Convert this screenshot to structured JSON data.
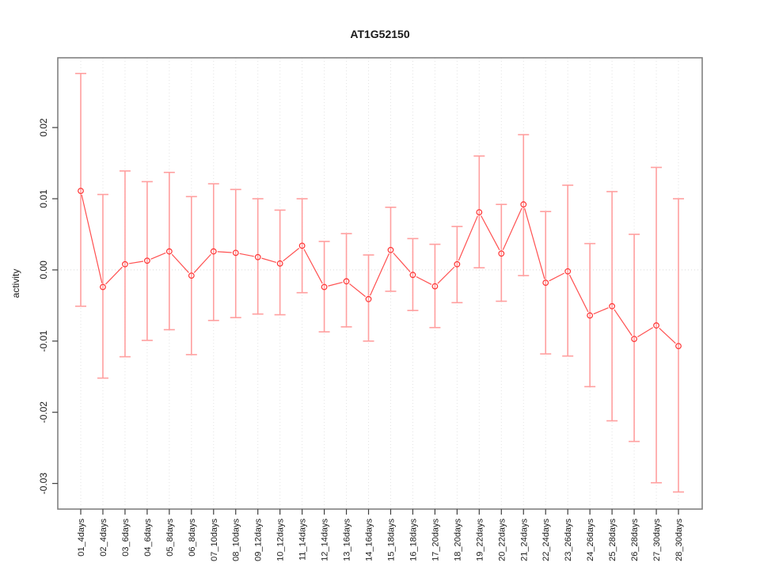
{
  "figure": {
    "title": "AT1G52150"
  },
  "chart_data": {
    "type": "line",
    "title": "AT1G52150",
    "xlabel": "",
    "ylabel": "activity",
    "legend": "none",
    "grid": "dotted vertical gridline at every category; dotted horizontal line at y=0",
    "marker": "open-circle",
    "categories": [
      "01_4days",
      "02_4days",
      "03_6days",
      "04_6days",
      "05_8days",
      "06_8days",
      "07_10days",
      "08_10days",
      "09_12days",
      "10_12days",
      "11_14days",
      "12_14days",
      "13_16days",
      "14_16days",
      "15_18days",
      "16_18days",
      "17_20days",
      "18_20days",
      "19_22days",
      "20_22days",
      "21_24days",
      "22_24days",
      "23_26days",
      "24_26days",
      "25_28days",
      "26_28days",
      "27_30days",
      "28_30days"
    ],
    "series": [
      {
        "name": "activity",
        "values": [
          0.0111,
          -0.0024,
          0.0008,
          0.0013,
          0.0026,
          -0.0008,
          0.0026,
          0.0024,
          0.0018,
          0.0009,
          0.0034,
          -0.0024,
          -0.0016,
          -0.0041,
          0.0028,
          -0.0007,
          -0.0023,
          0.0008,
          0.0081,
          0.0023,
          0.0092,
          -0.0018,
          -0.0002,
          -0.0064,
          -0.0051,
          -0.0097,
          -0.0078,
          -0.0107
        ],
        "error_high": [
          0.0276,
          0.0106,
          0.0139,
          0.0124,
          0.0137,
          0.0103,
          0.0121,
          0.0113,
          0.01,
          0.0084,
          0.01,
          0.004,
          0.0051,
          0.0021,
          0.0088,
          0.0044,
          0.0036,
          0.0061,
          0.016,
          0.0092,
          0.019,
          0.0082,
          0.0119,
          0.0037,
          0.011,
          0.005,
          0.0144,
          0.01
        ],
        "error_low": [
          -0.0051,
          -0.0152,
          -0.0122,
          -0.0099,
          -0.0084,
          -0.0119,
          -0.0071,
          -0.0067,
          -0.0062,
          -0.0063,
          -0.0032,
          -0.0087,
          -0.008,
          -0.01,
          -0.003,
          -0.0057,
          -0.0081,
          -0.0046,
          0.0003,
          -0.0044,
          -0.0008,
          -0.0118,
          -0.0121,
          -0.0164,
          -0.0212,
          -0.0241,
          -0.0299,
          -0.0312
        ]
      }
    ],
    "ylim": [
      -0.0336,
      0.0298
    ],
    "yticks": [
      0.02,
      0.01,
      0.0,
      -0.01,
      -0.02,
      -0.03
    ],
    "ytick_labels": [
      "0.02",
      "0.01",
      "0.00",
      "-0.01",
      "-0.02",
      "-0.03"
    ],
    "colors": {
      "line": "#ff5050",
      "marker": "#ff3333",
      "error_bar": "#ff9f9f",
      "grid": "#e3e3e3",
      "zero_line": "#d9d9d9",
      "box": "#808080",
      "tick": "#404040",
      "text": "#1a1a1a"
    }
  }
}
